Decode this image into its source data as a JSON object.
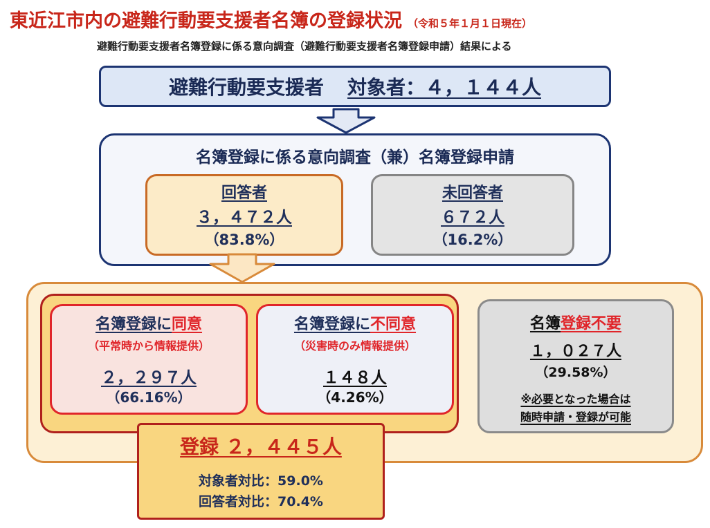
{
  "title": {
    "main": "東近江市内の避難行動要支援者名簿の登録状況",
    "date": "（令和５年１月１日現在）"
  },
  "subtitle": "避難行動要支援者名簿登録に係る意向調査（避難行動要支援者名簿登録申請）結果による",
  "target": {
    "label": "避難行動要支援者",
    "value": "対象者：４，１４４人"
  },
  "survey": {
    "title": "名簿登録に係る意向調査（兼）名簿登録申請",
    "respondents": {
      "label": "回答者",
      "count": "３，４７２人",
      "pct": "（83.8%）"
    },
    "non_respondents": {
      "label": "未回答者",
      "count": "６７２人",
      "pct": "（16.2%）"
    }
  },
  "agree": {
    "title_prefix": "名簿登録に",
    "title_emph": "同意",
    "note": "（平常時から情報提供）",
    "count": "２，２９７人",
    "pct": "（66.16%）"
  },
  "disagree": {
    "title_prefix": "名簿登録に",
    "title_emph": "不同意",
    "note": "（災害時のみ情報提供）",
    "count": "１４８人",
    "pct": "（4.26%）"
  },
  "no_need": {
    "title_prefix": "名簿",
    "title_emph": "登録不要",
    "count": "１，０２７人",
    "pct": "（29.58%）",
    "note_line1": "※必要となった場合は",
    "note_line2": "随時申請・登録が可能"
  },
  "registered": {
    "title": "登録 ２，４４５人",
    "ratio_target": "対象者対比：59.0%",
    "ratio_respondents": "回答者対比：70.4%"
  },
  "colors": {
    "title_red": "#c8261a",
    "navy": "#1c3472",
    "accent_red": "#e0252a",
    "orange": "#c86a25",
    "yellow_fill": "#f9d680"
  }
}
